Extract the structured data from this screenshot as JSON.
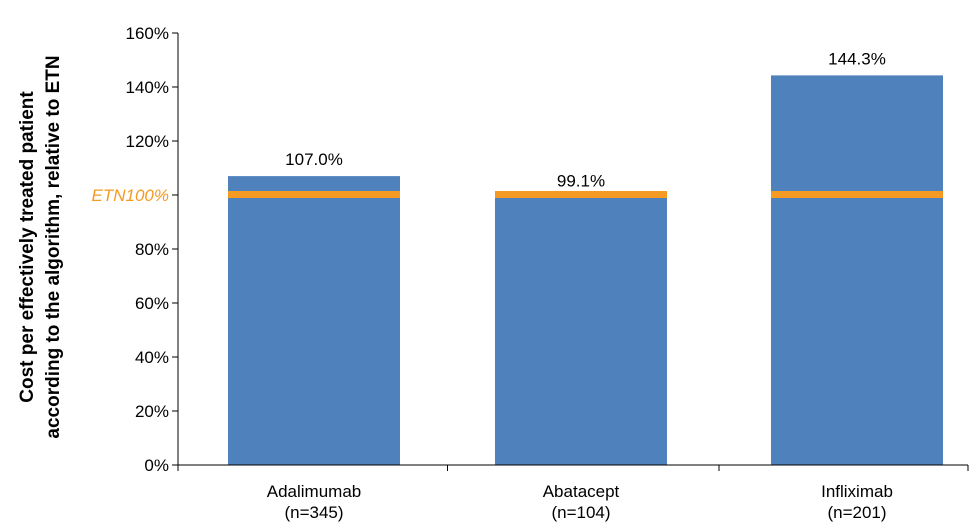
{
  "chart_data": {
    "type": "bar",
    "categories": [
      "Adalimumab\n(n=345)",
      "Abatacept\n(n=104)",
      "Infliximab\n(n=201)"
    ],
    "values": [
      107.0,
      99.1,
      144.3
    ],
    "data_labels": [
      "107.0%",
      "99.1%",
      "144.3%"
    ],
    "reference_line": {
      "label": "ETN100%",
      "value": 100
    },
    "ylabel_lines": [
      "Cost per effectively treated patient",
      "according to the algorithm, relative to ETN"
    ],
    "ytick_labels": [
      "0%",
      "20%",
      "40%",
      "60%",
      "80%",
      "100%",
      "120%",
      "140%",
      "160%"
    ],
    "ylim": [
      0,
      160
    ],
    "grid": false,
    "legend": "none"
  },
  "colors": {
    "bar": "#4F81BD",
    "reference": "#F59A23",
    "axis": "#000000"
  }
}
